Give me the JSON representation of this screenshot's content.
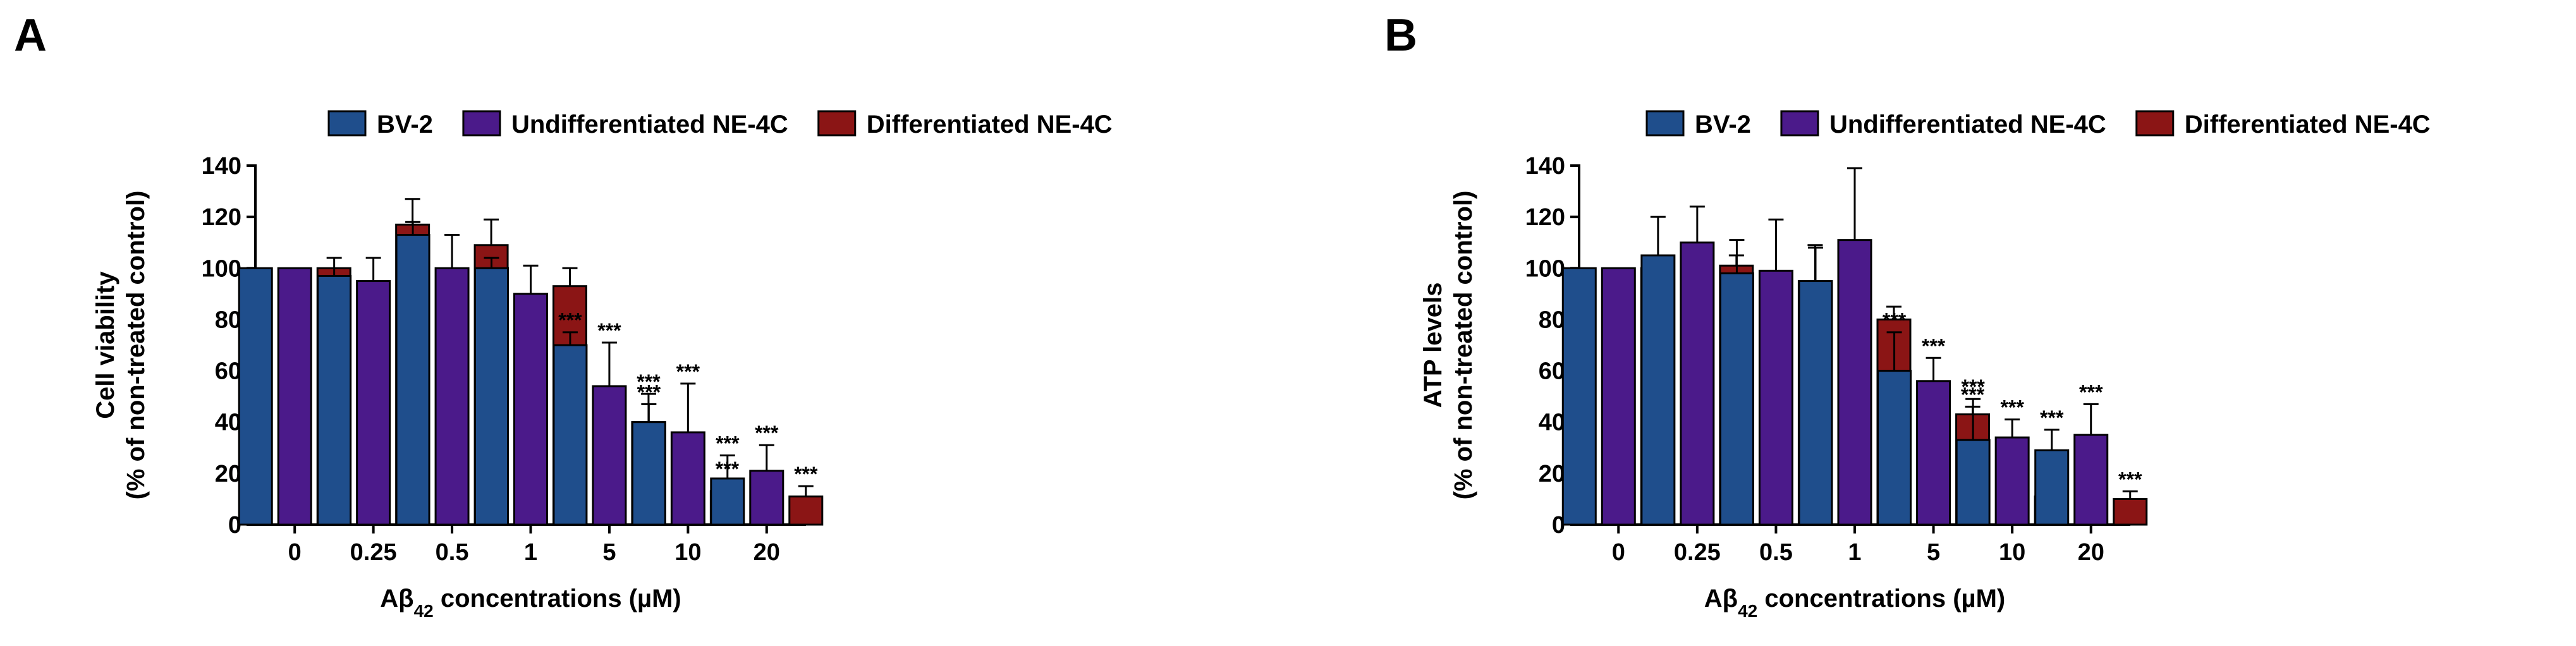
{
  "colors": {
    "BV-2": "#1f4e8c",
    "Undifferentiated NE-4C": "#4b1a8a",
    "Differentiated NE-4C": "#8b1515"
  },
  "chart_data": [
    {
      "panel": "A",
      "type": "bar",
      "ylabel_line1": "Cell viability",
      "ylabel_line2": "(% of non-treated control)",
      "xlabel_prefix": "Aβ",
      "xlabel_sub": "42",
      "xlabel_suffix": " concentrations (µM)",
      "ylim": [
        0,
        140
      ],
      "yticks": [
        0,
        20,
        40,
        60,
        80,
        100,
        120,
        140
      ],
      "grid": false,
      "legend": "top",
      "categories": [
        "0",
        "0.25",
        "0.5",
        "1",
        "5",
        "10",
        "20"
      ],
      "series": [
        {
          "name": "BV-2",
          "values": [
            100,
            97,
            113,
            100,
            70,
            40,
            18
          ],
          "errors": [
            0,
            7,
            5,
            4,
            5,
            7,
            9
          ],
          "sig": [
            "",
            "",
            "",
            "",
            "***",
            "***",
            "***"
          ]
        },
        {
          "name": "Undifferentiated NE-4C",
          "values": [
            100,
            95,
            100,
            90,
            54,
            36,
            21
          ],
          "errors": [
            0,
            9,
            13,
            11,
            17,
            19,
            10
          ],
          "sig": [
            "",
            "",
            "",
            "",
            "***",
            "***",
            "***"
          ]
        },
        {
          "name": "Differentiated NE-4C",
          "values": [
            100,
            117,
            109,
            93,
            40,
            13,
            11
          ],
          "errors": [
            0,
            10,
            10,
            7,
            11,
            4,
            4
          ],
          "sig": [
            "",
            "",
            "",
            "",
            "***",
            "***",
            "***"
          ]
        }
      ]
    },
    {
      "panel": "B",
      "type": "bar",
      "ylabel_line1": "ATP levels",
      "ylabel_line2": "(% of non-treated control)",
      "xlabel_prefix": "Aβ",
      "xlabel_sub": "42",
      "xlabel_suffix": " concentrations (µM)",
      "ylim": [
        0,
        140
      ],
      "yticks": [
        0,
        20,
        40,
        60,
        80,
        100,
        120,
        140
      ],
      "grid": false,
      "legend": "top",
      "categories": [
        "0",
        "0.25",
        "0.5",
        "1",
        "5",
        "10",
        "20"
      ],
      "series": [
        {
          "name": "BV-2",
          "values": [
            100,
            105,
            98,
            95,
            60,
            33,
            29
          ],
          "errors": [
            0,
            15,
            13,
            13,
            15,
            16,
            8
          ],
          "sig": [
            "",
            "",
            "",
            "",
            "***",
            "***",
            "***"
          ]
        },
        {
          "name": "Undifferentiated NE-4C",
          "values": [
            100,
            110,
            99,
            111,
            56,
            34,
            35
          ],
          "errors": [
            0,
            14,
            20,
            28,
            9,
            7,
            12
          ],
          "sig": [
            "",
            "",
            "",
            "",
            "***",
            "***",
            "***"
          ]
        },
        {
          "name": "Differentiated NE-4C",
          "values": [
            100,
            101,
            95,
            80,
            43,
            11,
            10
          ],
          "errors": [
            0,
            4,
            14,
            5,
            3,
            4,
            3
          ],
          "sig": [
            "",
            "",
            "",
            "",
            "***",
            "***",
            "***"
          ]
        }
      ]
    }
  ]
}
